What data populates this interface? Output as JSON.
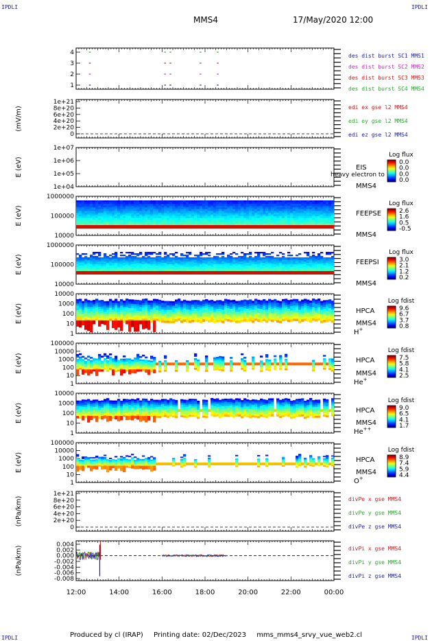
{
  "header": {
    "spacecraft": "MMS4",
    "datetime": "17/May/2020 12:00",
    "corner_left": "IPDLI",
    "corner_right": "IPDLI"
  },
  "footer": {
    "produced_by": "Produced by cl (IRAP)",
    "printing_date": "Printing date: 02/Dec/2023",
    "filename": "mms_mms4_srvy_vue_web2.cl"
  },
  "chart_data": {
    "type": "multi-panel time series / spectrogram",
    "x_tick_labels": [
      "12:00",
      "14:00",
      "16:00",
      "18:00",
      "20:00",
      "22:00",
      "00:00"
    ],
    "x_hours": [
      12,
      14,
      16,
      18,
      20,
      22,
      24
    ],
    "panels": [
      {
        "id": "burst",
        "type": "event-marks",
        "ylabel": "",
        "y_ticks": [
          "4",
          "3",
          "2",
          "1"
        ],
        "legend": [
          {
            "text": "des dist burst SC1 MMS1",
            "color": "#1a1aa8"
          },
          {
            "text": "des dist burst SC2 MMS2",
            "color": "#cc22cc"
          },
          {
            "text": "des dist burst SC3 MMS3",
            "color": "#dd1111"
          },
          {
            "text": "des dist burst SC4 MMS4",
            "color": "#22aa22"
          }
        ],
        "burst_hours": [
          12.6,
          16.1,
          16.35,
          17.75,
          18.55
        ]
      },
      {
        "id": "edi",
        "type": "line",
        "ylabel": "(mV/m)",
        "y_ticks": [
          "1e+21",
          "8e+20",
          "6e+20",
          "4e+20",
          "2e+20",
          "0"
        ],
        "legend": [
          {
            "text": "edi ex gse l2 MMS4",
            "color": "#dd1111"
          },
          {
            "text": "edi ey gse l2 MMS4",
            "color": "#22aa22"
          },
          {
            "text": "edi ez gse l2 MMS4",
            "color": "#1a1aa8"
          }
        ]
      },
      {
        "id": "eis",
        "type": "spectrogram",
        "ylabel": "E (eV)",
        "y_ticks": [
          "1e+07",
          "1e+06",
          "1e+05",
          "1e+04"
        ],
        "instrument": "EIS",
        "extra_label": "heavy electron to",
        "sc": "MMS4",
        "cbar_title": "Log flux",
        "cbar_ticks": [
          "0.0",
          "0.0",
          "0.0",
          "0.0"
        ]
      },
      {
        "id": "feepse",
        "type": "spectrogram",
        "ylabel": "E (eV)",
        "y_ticks": [
          "1000000",
          "100000",
          "10000"
        ],
        "instrument": "FEEPSE",
        "sc": "MMS4",
        "cbar_title": "Log flux",
        "cbar_ticks": [
          "2.6",
          "1.6",
          "0.5",
          "-0.5"
        ]
      },
      {
        "id": "feepsi",
        "type": "spectrogram",
        "ylabel": "E (eV)",
        "y_ticks": [
          "1000000",
          "100000",
          "10000"
        ],
        "instrument": "FEEPSI",
        "sc": "MMS4",
        "cbar_title": "Log flux",
        "cbar_ticks": [
          "3.0",
          "2.1",
          "1.2",
          "0.2"
        ]
      },
      {
        "id": "hpca_h",
        "type": "spectrogram",
        "ylabel": "E (eV)",
        "y_ticks": [
          "10000",
          "1000",
          "100",
          "10",
          "1"
        ],
        "instrument": "HPCA",
        "sc": "MMS4",
        "species": "H",
        "species_sup": "+",
        "cbar_title": "Log fdist",
        "cbar_ticks": [
          "9.6",
          "6.7",
          "3.7",
          "0.8"
        ]
      },
      {
        "id": "hpca_he1",
        "type": "spectrogram",
        "ylabel": "E (eV)",
        "y_ticks": [
          "100000",
          "10000",
          "1000",
          "100",
          "10",
          "1"
        ],
        "instrument": "HPCA",
        "sc": "MMS4",
        "species": "He",
        "species_sup": "+",
        "cbar_title": "Log fdist",
        "cbar_ticks": [
          "7.5",
          "5.8",
          "4.1",
          "2.5"
        ]
      },
      {
        "id": "hpca_he2",
        "type": "spectrogram",
        "ylabel": "E (eV)",
        "y_ticks": [
          "10000",
          "1000",
          "100",
          "10",
          "1"
        ],
        "instrument": "HPCA",
        "sc": "MMS4",
        "species": "He",
        "species_sup": "++",
        "cbar_title": "Log fdist",
        "cbar_ticks": [
          "9.0",
          "6.5",
          "4.1",
          "1.7"
        ]
      },
      {
        "id": "hpca_o",
        "type": "spectrogram",
        "ylabel": "E (eV)",
        "y_ticks": [
          "100000",
          "10000",
          "1000",
          "100",
          "10",
          "1"
        ],
        "instrument": "HPCA",
        "sc": "MMS4",
        "species": "O",
        "species_sup": "+",
        "cbar_title": "Log fdist",
        "cbar_ticks": [
          "8.9",
          "7.4",
          "5.9",
          "4.4"
        ]
      },
      {
        "id": "divpe",
        "type": "line",
        "ylabel": "(nPa/km)",
        "y_ticks": [
          "1e+21",
          "8e+20",
          "6e+20",
          "4e+20",
          "2e+20",
          "0"
        ],
        "legend": [
          {
            "text": "divPe x gse MMS4",
            "color": "#dd1111"
          },
          {
            "text": "divPe y gse MMS4",
            "color": "#22aa22"
          },
          {
            "text": "divPe z gse MMS4",
            "color": "#1a1aa8"
          }
        ]
      },
      {
        "id": "divpi",
        "type": "line",
        "ylabel": "(nPa/km)",
        "y_ticks": [
          "0.004",
          "0.002",
          "0.000",
          "-0.002",
          "-0.004",
          "-0.006",
          "-0.008"
        ],
        "ylim": [
          -0.009,
          0.005
        ],
        "legend": [
          {
            "text": "divPi x gse MMS4",
            "color": "#dd1111"
          },
          {
            "text": "divPi y gse MMS4",
            "color": "#22aa22"
          },
          {
            "text": "divPi z gse MMS4",
            "color": "#1a1aa8"
          }
        ],
        "segments_hours": [
          [
            12.0,
            13.1
          ],
          [
            16.0,
            19.0
          ]
        ]
      }
    ]
  }
}
